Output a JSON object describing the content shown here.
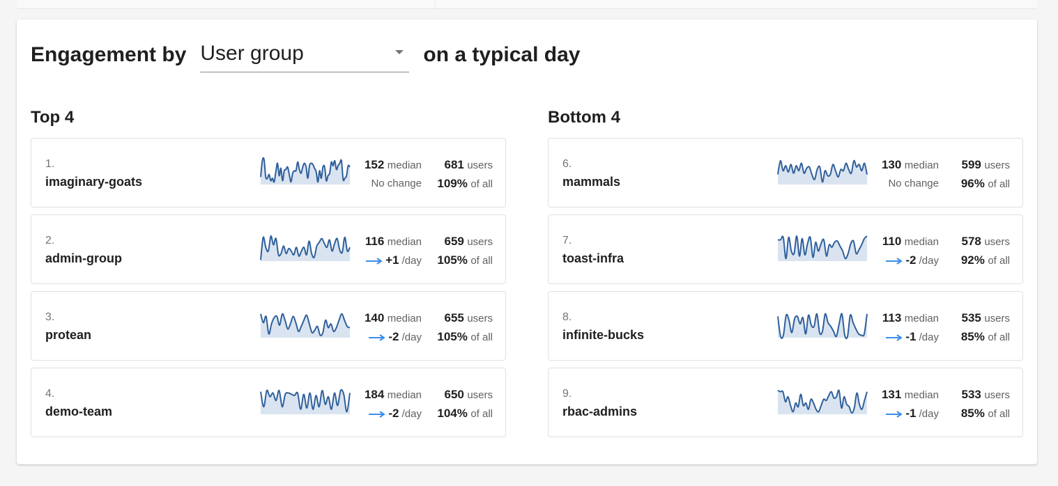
{
  "header": {
    "prefix": "Engagement by",
    "select_value": "User group",
    "suffix": "on a typical day"
  },
  "colors": {
    "spark_line": "#2f5f9b",
    "spark_fill": "#d9e4f0",
    "arrow": "#3b8ee8"
  },
  "top": {
    "title": "Top 4",
    "rows": [
      {
        "rank": "1.",
        "name": "imaginary-goats",
        "median": "152",
        "median_label": "median",
        "change": "No change",
        "change_value": "",
        "change_unit": "",
        "users": "681",
        "users_label": "users",
        "pct": "109%",
        "pct_label": "of all",
        "spark": [
          0.3,
          0.95,
          1.0,
          0.3,
          0.25,
          0.4,
          0.15,
          0.25,
          0.1,
          0.5,
          0.85,
          0.35,
          0.65,
          0.15,
          0.55,
          0.6,
          0.7,
          0.4,
          0.1,
          0.45,
          0.55,
          0.55,
          0.9,
          0.6,
          0.45,
          0.7,
          0.85,
          0.7,
          0.25,
          0.75,
          0.85,
          0.8,
          0.65,
          0.5,
          0.1,
          0.55,
          0.25,
          0.7,
          0.7,
          0.15,
          0.35,
          0.45,
          0.9,
          0.75,
          0.95,
          0.6,
          0.75,
          0.85,
          0.95,
          0.2,
          0.25,
          0.35,
          0.75,
          0.7
        ]
      },
      {
        "rank": "2.",
        "name": "admin-group",
        "median": "116",
        "median_label": "median",
        "change": "",
        "change_value": "+1",
        "change_unit": "/day",
        "users": "659",
        "users_label": "users",
        "pct": "105%",
        "pct_label": "of all",
        "spark": [
          0.05,
          0.95,
          0.55,
          0.4,
          1.0,
          0.65,
          0.9,
          0.25,
          0.3,
          0.6,
          0.3,
          0.5,
          0.4,
          0.25,
          0.55,
          0.2,
          0.4,
          0.55,
          0.25,
          0.8,
          0.3,
          0.15,
          0.6,
          0.75,
          0.9,
          0.7,
          0.55,
          0.85,
          0.4,
          0.7,
          0.9,
          0.45,
          0.35,
          0.95,
          0.4,
          0.55
        ]
      },
      {
        "rank": "3.",
        "name": "protean",
        "median": "140",
        "median_label": "median",
        "change": "",
        "change_value": "-2",
        "change_unit": "/day",
        "users": "655",
        "users_label": "users",
        "pct": "105%",
        "pct_label": "of all",
        "spark": [
          0.95,
          0.6,
          0.85,
          0.15,
          0.55,
          0.8,
          0.85,
          0.5,
          0.95,
          0.7,
          0.35,
          0.55,
          0.85,
          0.6,
          0.25,
          0.45,
          0.7,
          0.9,
          0.55,
          0.2,
          0.3,
          0.45,
          0.1,
          0.2,
          0.7,
          0.4,
          0.55,
          0.25,
          0.4,
          0.7,
          0.95,
          0.7,
          0.45,
          0.4
        ]
      },
      {
        "rank": "4.",
        "name": "demo-team",
        "median": "184",
        "median_label": "median",
        "change": "",
        "change_value": "-2",
        "change_unit": "/day",
        "users": "650",
        "users_label": "users",
        "pct": "104%",
        "pct_label": "of all",
        "spark": [
          0.9,
          0.3,
          0.95,
          0.7,
          0.85,
          0.55,
          0.95,
          0.3,
          0.8,
          0.85,
          0.8,
          0.75,
          0.85,
          0.2,
          0.8,
          0.25,
          0.85,
          0.2,
          0.75,
          0.3,
          0.95,
          0.4,
          0.7,
          0.2,
          0.85,
          0.35,
          0.95,
          0.8,
          0.1,
          0.85
        ]
      }
    ]
  },
  "bottom": {
    "title": "Bottom 4",
    "rows": [
      {
        "rank": "6.",
        "name": "mammals",
        "median": "130",
        "median_label": "median",
        "change": "No change",
        "change_value": "",
        "change_unit": "",
        "users": "599",
        "users_label": "users",
        "pct": "96%",
        "pct_label": "of all",
        "spark": [
          0.4,
          0.95,
          0.55,
          0.75,
          0.5,
          0.8,
          0.45,
          0.75,
          0.55,
          0.85,
          0.45,
          0.65,
          0.7,
          0.4,
          0.2,
          0.6,
          0.7,
          0.1,
          0.55,
          0.35,
          0.4,
          0.8,
          0.55,
          0.3,
          0.6,
          0.55,
          0.85,
          0.6,
          0.45,
          0.95,
          0.7,
          0.8,
          0.55,
          0.85,
          0.4
        ]
      },
      {
        "rank": "7.",
        "name": "toast-infra",
        "median": "110",
        "median_label": "median",
        "change": "",
        "change_value": "-2",
        "change_unit": "/day",
        "users": "578",
        "users_label": "users",
        "pct": "92%",
        "pct_label": "of all",
        "spark": [
          0.85,
          0.85,
          0.95,
          0.1,
          0.95,
          0.4,
          0.3,
          1.0,
          0.2,
          0.9,
          0.25,
          0.7,
          0.95,
          0.15,
          0.75,
          0.4,
          0.7,
          0.85,
          0.2,
          0.65,
          0.55,
          0.75,
          0.8,
          0.6,
          0.4,
          0.1,
          0.3,
          0.7,
          0.8,
          0.3,
          0.45,
          0.65,
          0.9,
          1.0
        ]
      },
      {
        "rank": "8.",
        "name": "infinite-bucks",
        "median": "113",
        "median_label": "median",
        "change": "",
        "change_value": "-1",
        "change_unit": "/day",
        "users": "535",
        "users_label": "users",
        "pct": "85%",
        "pct_label": "of all",
        "spark": [
          0.85,
          0.05,
          0.1,
          0.9,
          0.7,
          0.2,
          0.75,
          0.85,
          0.55,
          0.8,
          0.15,
          0.9,
          0.5,
          0.45,
          0.95,
          0.2,
          0.25,
          0.95,
          0.6,
          0.45,
          0.25,
          0.05,
          0.55,
          0.95,
          0.1,
          0.05,
          0.9,
          0.6,
          0.35,
          0.15,
          0.1,
          0.15,
          0.95
        ]
      },
      {
        "rank": "9.",
        "name": "rbac-admins",
        "median": "131",
        "median_label": "median",
        "change": "",
        "change_value": "-1",
        "change_unit": "/day",
        "users": "533",
        "users_label": "users",
        "pct": "85%",
        "pct_label": "of all",
        "spark": [
          0.95,
          0.9,
          0.9,
          0.5,
          0.7,
          0.35,
          0.1,
          0.45,
          0.3,
          0.8,
          0.35,
          0.45,
          0.2,
          0.6,
          0.45,
          0.2,
          0.1,
          0.35,
          0.6,
          0.55,
          0.75,
          0.9,
          0.65,
          0.7,
          0.95,
          0.25,
          0.7,
          0.4,
          0.3,
          0.05,
          0.25,
          0.85,
          0.4,
          0.2,
          0.55,
          0.9
        ]
      }
    ]
  }
}
